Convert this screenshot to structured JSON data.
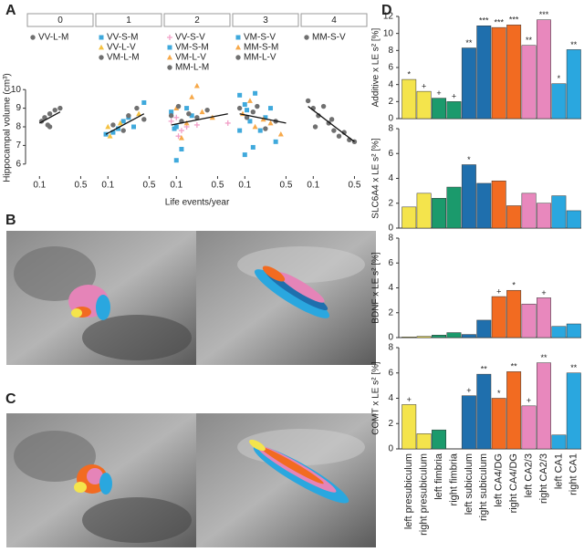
{
  "panel_labels": [
    "A",
    "B",
    "C",
    "D"
  ],
  "chart_data": [
    {
      "type": "scatter",
      "xlabel": "Life events/year",
      "ylabel": "Hippocampal volume (cm³)",
      "xlim": [
        0,
        0.62
      ],
      "xticks": [
        0.1,
        0.5
      ],
      "ylim": [
        5.5,
        10.5
      ],
      "yticks": [
        6,
        7,
        8,
        9,
        10
      ],
      "facets": [
        {
          "title": "0",
          "series": [
            {
              "name": "VV-L-M",
              "color": "#707070",
              "marker": "circle",
              "x": [
                0.12,
                0.15,
                0.18,
                0.2,
                0.25,
                0.3,
                0.2
              ],
              "y": [
                8.3,
                8.5,
                8.1,
                8.7,
                8.9,
                9.0,
                8.0
              ]
            }
          ],
          "fit": {
            "x": [
              0.1,
              0.3
            ],
            "y": [
              8.2,
              8.8
            ]
          }
        },
        {
          "title": "1",
          "series": [
            {
              "name": "VV-S-M",
              "color": "#3fa9dc",
              "marker": "square",
              "x": [
                0.08,
                0.15,
                0.25,
                0.35,
                0.45,
                0.3,
                0.2
              ],
              "y": [
                7.6,
                7.7,
                8.3,
                8.0,
                9.3,
                8.5,
                7.9
              ]
            },
            {
              "name": "VV-L-V",
              "color": "#f5c242",
              "marker": "triangle",
              "x": [
                0.12,
                0.22,
                0.4,
                0.1
              ],
              "y": [
                7.5,
                8.2,
                8.7,
                8.0
              ]
            },
            {
              "name": "VM-L-M",
              "color": "#707070",
              "marker": "circle",
              "x": [
                0.15,
                0.3,
                0.38,
                0.25,
                0.45
              ],
              "y": [
                8.1,
                8.6,
                9.0,
                7.8,
                8.4
              ]
            }
          ],
          "fit": {
            "x": [
              0.08,
              0.45
            ],
            "y": [
              7.6,
              8.7
            ]
          }
        },
        {
          "title": "2",
          "series": [
            {
              "name": "VV-S-V",
              "color": "#f2a0c8",
              "marker": "plus",
              "x": [
                0.05,
                0.1,
                0.15,
                0.2,
                0.3,
                0.6,
                0.12
              ],
              "y": [
                8.3,
                8.5,
                7.8,
                8.0,
                8.1,
                8.2,
                7.5
              ]
            },
            {
              "name": "VM-S-M",
              "color": "#3fa9dc",
              "marker": "square",
              "x": [
                0.05,
                0.1,
                0.15,
                0.08,
                0.2,
                0.25,
                0.1
              ],
              "y": [
                8.8,
                8.0,
                6.8,
                7.9,
                9.0,
                8.6,
                6.2
              ]
            },
            {
              "name": "VM-L-V",
              "color": "#f7a94a",
              "marker": "triangle",
              "x": [
                0.1,
                0.2,
                0.3,
                0.35,
                0.15,
                0.25,
                0.45
              ],
              "y": [
                9.0,
                8.2,
                10.2,
                8.8,
                7.4,
                9.6,
                8.5
              ]
            },
            {
              "name": "MM-L-M",
              "color": "#707070",
              "marker": "circle",
              "x": [
                0.05,
                0.15,
                0.22,
                0.3,
                0.4,
                0.12
              ],
              "y": [
                8.6,
                8.3,
                8.7,
                8.5,
                8.9,
                9.1
              ]
            }
          ],
          "fit": {
            "x": [
              0.05,
              0.6
            ],
            "y": [
              8.1,
              8.7
            ]
          }
        },
        {
          "title": "3",
          "series": [
            {
              "name": "VM-S-V",
              "color": "#3fa9dc",
              "marker": "square",
              "x": [
                0.05,
                0.1,
                0.15,
                0.2,
                0.25,
                0.3,
                0.4,
                0.05,
                0.12,
                0.18,
                0.35,
                0.1
              ],
              "y": [
                9.7,
                9.2,
                8.3,
                9.8,
                7.8,
                8.5,
                7.2,
                7.8,
                8.9,
                6.9,
                9.0,
                6.5
              ]
            },
            {
              "name": "MM-S-M",
              "color": "#f7a94a",
              "marker": "triangle",
              "x": [
                0.08,
                0.15,
                0.2,
                0.28,
                0.35,
                0.45
              ],
              "y": [
                8.7,
                9.4,
                8.0,
                8.4,
                8.2,
                7.6
              ]
            },
            {
              "name": "MM-L-V",
              "color": "#707070",
              "marker": "circle",
              "x": [
                0.05,
                0.12,
                0.22,
                0.3,
                0.4,
                0.18
              ],
              "y": [
                9.0,
                8.5,
                9.1,
                7.9,
                8.3,
                8.8
              ]
            }
          ],
          "fit": {
            "x": [
              0.05,
              0.5
            ],
            "y": [
              8.7,
              8.2
            ]
          }
        },
        {
          "title": "4",
          "series": [
            {
              "name": "MM-S-V",
              "color": "#707070",
              "marker": "circle",
              "x": [
                0.05,
                0.1,
                0.15,
                0.2,
                0.25,
                0.3,
                0.35,
                0.4,
                0.45,
                0.5,
                0.12,
                0.28
              ],
              "y": [
                9.4,
                9.0,
                8.6,
                9.1,
                8.2,
                7.8,
                7.5,
                7.7,
                7.3,
                7.2,
                8.0,
                8.4
              ]
            }
          ],
          "fit": {
            "x": [
              0.05,
              0.5
            ],
            "y": [
              9.1,
              7.2
            ]
          }
        }
      ]
    },
    {
      "type": "bar",
      "ylabel": "Additive x LE s² [%]",
      "ylim": [
        0,
        12
      ],
      "yticks": [
        0,
        2,
        4,
        6,
        8,
        10,
        12
      ],
      "colors": [
        "#f4e44c",
        "#f4e44c",
        "#1b9a6c",
        "#1b9a6c",
        "#1f6fad",
        "#1f6fad",
        "#f26b21",
        "#f26b21",
        "#e888bd",
        "#e888bd",
        "#2aa7df",
        "#2aa7df"
      ],
      "values": [
        4.6,
        3.2,
        2.4,
        2.0,
        8.3,
        10.9,
        10.7,
        11.0,
        8.6,
        11.6,
        4.1,
        8.1
      ],
      "annotations": [
        "*",
        "+",
        "+",
        "+",
        "**",
        "***",
        "***",
        "***",
        "**",
        "***",
        "*",
        "**"
      ]
    },
    {
      "type": "bar",
      "ylabel": "SLC6A4 x LE s² [%]",
      "ylim": [
        0,
        8
      ],
      "yticks": [
        0,
        2,
        4,
        6,
        8
      ],
      "colors": [
        "#f4e44c",
        "#f4e44c",
        "#1b9a6c",
        "#1b9a6c",
        "#1f6fad",
        "#1f6fad",
        "#f26b21",
        "#f26b21",
        "#e888bd",
        "#e888bd",
        "#2aa7df",
        "#2aa7df"
      ],
      "values": [
        1.7,
        2.8,
        2.4,
        3.3,
        5.1,
        3.6,
        3.8,
        1.8,
        2.8,
        2.0,
        2.6,
        1.4
      ],
      "annotations": [
        null,
        null,
        null,
        null,
        "*",
        null,
        null,
        null,
        null,
        null,
        null,
        null
      ]
    },
    {
      "type": "bar",
      "ylabel": "BDNF x LE s² [%]",
      "ylim": [
        0,
        8
      ],
      "yticks": [
        0,
        2,
        4,
        6,
        8
      ],
      "colors": [
        "#f4e44c",
        "#f4e44c",
        "#1b9a6c",
        "#1b9a6c",
        "#1f6fad",
        "#1f6fad",
        "#f26b21",
        "#f26b21",
        "#e888bd",
        "#e888bd",
        "#2aa7df",
        "#2aa7df"
      ],
      "values": [
        0.05,
        0.1,
        0.2,
        0.4,
        0.25,
        1.4,
        3.3,
        3.8,
        2.7,
        3.2,
        0.9,
        1.1
      ],
      "annotations": [
        null,
        null,
        null,
        null,
        null,
        null,
        "+",
        "*",
        null,
        "+",
        null,
        null
      ]
    },
    {
      "type": "bar",
      "ylabel": "COMT x LE s² [%]",
      "ylim": [
        0,
        8
      ],
      "yticks": [
        0,
        2,
        4,
        6,
        8
      ],
      "colors": [
        "#f4e44c",
        "#f4e44c",
        "#1b9a6c",
        "#1b9a6c",
        "#1f6fad",
        "#1f6fad",
        "#f26b21",
        "#f26b21",
        "#e888bd",
        "#e888bd",
        "#2aa7df",
        "#2aa7df"
      ],
      "values": [
        3.5,
        1.2,
        1.5,
        0.0,
        4.2,
        5.9,
        4.0,
        6.1,
        3.4,
        6.8,
        1.1,
        6.0
      ],
      "annotations": [
        "+",
        null,
        null,
        null,
        "+",
        "**",
        "*",
        "**",
        "+",
        "**",
        null,
        "**"
      ],
      "categories": [
        "left presubiculum",
        "right presubiculum",
        "left fimbria",
        "right fimbria",
        "left subiculum",
        "right subiculum",
        "left CA4/DG",
        "right CA4/DG",
        "left CA2/3",
        "right CA2/3",
        "left CA1",
        "right CA1"
      ]
    }
  ]
}
